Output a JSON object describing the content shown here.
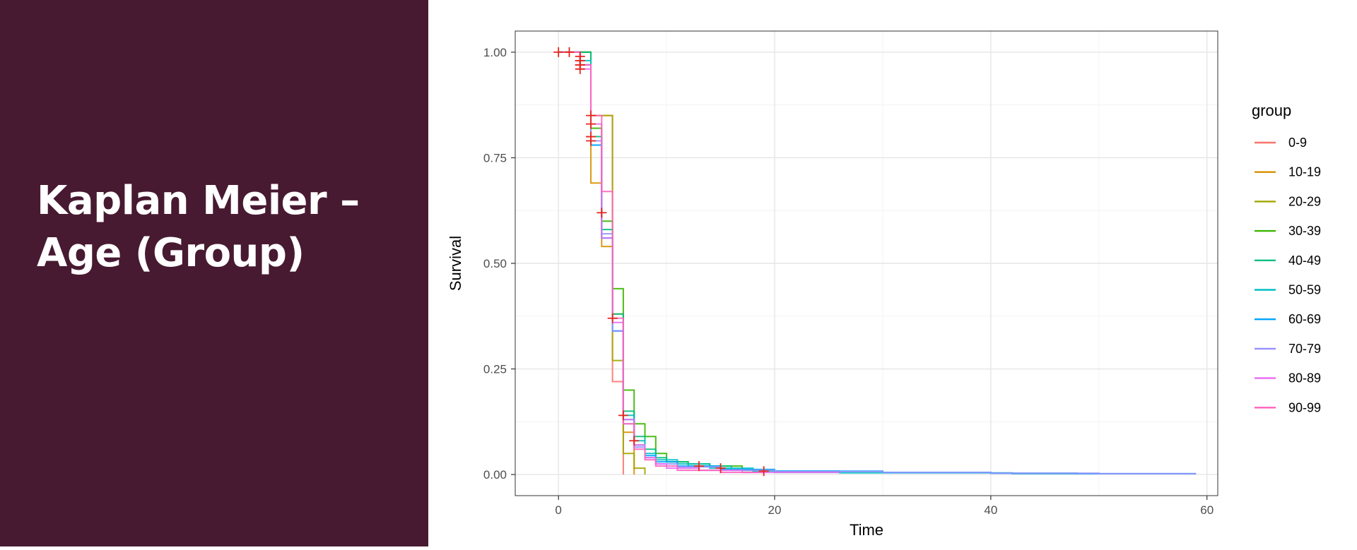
{
  "slide": {
    "title_line1": "Kaplan Meier –",
    "title_line2": "Age (Group)",
    "colors": {
      "panel": "#471a31",
      "title": "#ffffff"
    }
  },
  "chart_data": {
    "type": "line",
    "subtype": "kaplan-meier-step",
    "title": "",
    "xlabel": "Time",
    "ylabel": "Survival",
    "xlim": [
      -4,
      61
    ],
    "ylim": [
      -0.05,
      1.05
    ],
    "xticks": [
      0,
      20,
      40,
      60
    ],
    "xtick_labels": [
      "0",
      "20",
      "40",
      "60"
    ],
    "yticks": [
      0,
      0.25,
      0.5,
      0.75,
      1.0
    ],
    "ytick_labels": [
      "0.00",
      "0.25",
      "0.50",
      "0.75",
      "1.00"
    ],
    "grid": true,
    "legend": {
      "title": "group",
      "position": "right"
    },
    "censor_color": "#e8261c",
    "series": [
      {
        "name": "0-9",
        "color": "#f8766d",
        "points": [
          [
            0,
            1.0
          ],
          [
            3,
            1.0
          ],
          [
            3,
            0.85
          ],
          [
            5,
            0.85
          ],
          [
            5,
            0.22
          ],
          [
            6,
            0.22
          ],
          [
            6,
            0.0
          ]
        ],
        "censor": [
          [
            0,
            1.0
          ],
          [
            1,
            1.0
          ]
        ]
      },
      {
        "name": "10-19",
        "color": "#d89000",
        "points": [
          [
            0,
            1.0
          ],
          [
            3,
            1.0
          ],
          [
            3,
            0.69
          ],
          [
            4,
            0.69
          ],
          [
            4,
            0.54
          ],
          [
            5,
            0.54
          ],
          [
            5,
            0.38
          ],
          [
            6,
            0.38
          ],
          [
            6,
            0.1
          ],
          [
            7,
            0.1
          ],
          [
            7,
            0.0
          ]
        ],
        "censor": [
          [
            2,
            0.97
          ]
        ]
      },
      {
        "name": "20-29",
        "color": "#a3a500",
        "points": [
          [
            0,
            1.0
          ],
          [
            3,
            1.0
          ],
          [
            3,
            0.85
          ],
          [
            5,
            0.85
          ],
          [
            5,
            0.27
          ],
          [
            6,
            0.27
          ],
          [
            6,
            0.05
          ],
          [
            7,
            0.05
          ],
          [
            7,
            0.015
          ],
          [
            8,
            0.015
          ],
          [
            8,
            0.0
          ]
        ],
        "censor": [
          [
            2,
            0.98
          ]
        ]
      },
      {
        "name": "30-39",
        "color": "#39b600",
        "points": [
          [
            0,
            1.0
          ],
          [
            3,
            1.0
          ],
          [
            3,
            0.82
          ],
          [
            4,
            0.82
          ],
          [
            4,
            0.6
          ],
          [
            5,
            0.6
          ],
          [
            5,
            0.44
          ],
          [
            6,
            0.44
          ],
          [
            6,
            0.2
          ],
          [
            7,
            0.2
          ],
          [
            7,
            0.12
          ],
          [
            8,
            0.12
          ],
          [
            8,
            0.09
          ],
          [
            9,
            0.09
          ],
          [
            9,
            0.05
          ],
          [
            10,
            0.05
          ],
          [
            10,
            0.03
          ],
          [
            12,
            0.03
          ],
          [
            12,
            0.025
          ],
          [
            14,
            0.025
          ],
          [
            14,
            0.02
          ],
          [
            17,
            0.02
          ],
          [
            17,
            0.01
          ],
          [
            19,
            0.01
          ]
        ],
        "censor": [
          [
            3,
            0.8
          ]
        ]
      },
      {
        "name": "40-49",
        "color": "#00bf7d",
        "points": [
          [
            0,
            1.0
          ],
          [
            3,
            1.0
          ],
          [
            3,
            0.8
          ],
          [
            4,
            0.8
          ],
          [
            4,
            0.58
          ],
          [
            5,
            0.58
          ],
          [
            5,
            0.38
          ],
          [
            6,
            0.38
          ],
          [
            6,
            0.15
          ],
          [
            7,
            0.15
          ],
          [
            7,
            0.09
          ],
          [
            8,
            0.09
          ],
          [
            8,
            0.06
          ],
          [
            9,
            0.06
          ],
          [
            9,
            0.04
          ],
          [
            10,
            0.04
          ],
          [
            10,
            0.03
          ],
          [
            12,
            0.03
          ],
          [
            12,
            0.02
          ],
          [
            16,
            0.02
          ],
          [
            16,
            0.01
          ],
          [
            20,
            0.01
          ],
          [
            20,
            0.005
          ],
          [
            26,
            0.005
          ]
        ],
        "censor": [
          [
            3,
            0.79
          ]
        ]
      },
      {
        "name": "50-59",
        "color": "#00bfc4",
        "points": [
          [
            0,
            1.0
          ],
          [
            2,
            1.0
          ],
          [
            2,
            0.98
          ],
          [
            3,
            0.98
          ],
          [
            3,
            0.78
          ],
          [
            4,
            0.78
          ],
          [
            4,
            0.56
          ],
          [
            5,
            0.56
          ],
          [
            5,
            0.34
          ],
          [
            6,
            0.34
          ],
          [
            6,
            0.14
          ],
          [
            7,
            0.14
          ],
          [
            7,
            0.08
          ],
          [
            8,
            0.08
          ],
          [
            8,
            0.05
          ],
          [
            9,
            0.05
          ],
          [
            9,
            0.035
          ],
          [
            11,
            0.035
          ],
          [
            11,
            0.025
          ],
          [
            14,
            0.025
          ],
          [
            14,
            0.015
          ],
          [
            18,
            0.015
          ],
          [
            18,
            0.008
          ],
          [
            26,
            0.008
          ],
          [
            26,
            0.004
          ],
          [
            42,
            0.004
          ],
          [
            42,
            0.002
          ],
          [
            48,
            0.002
          ]
        ],
        "censor": [
          [
            2,
            0.98
          ]
        ]
      },
      {
        "name": "60-69",
        "color": "#00a5ff",
        "points": [
          [
            0,
            1.0
          ],
          [
            2,
            1.0
          ],
          [
            2,
            0.97
          ],
          [
            3,
            0.97
          ],
          [
            3,
            0.78
          ],
          [
            4,
            0.78
          ],
          [
            4,
            0.56
          ],
          [
            5,
            0.56
          ],
          [
            5,
            0.34
          ],
          [
            6,
            0.34
          ],
          [
            6,
            0.13
          ],
          [
            7,
            0.13
          ],
          [
            7,
            0.07
          ],
          [
            8,
            0.07
          ],
          [
            8,
            0.045
          ],
          [
            9,
            0.045
          ],
          [
            9,
            0.03
          ],
          [
            11,
            0.03
          ],
          [
            11,
            0.02
          ],
          [
            15,
            0.02
          ],
          [
            15,
            0.012
          ],
          [
            20,
            0.012
          ],
          [
            20,
            0.008
          ],
          [
            30,
            0.008
          ],
          [
            30,
            0.005
          ],
          [
            40,
            0.005
          ],
          [
            40,
            0.003
          ],
          [
            48,
            0.003
          ],
          [
            48,
            0.002
          ],
          [
            59,
            0.002
          ]
        ],
        "censor": [
          [
            2,
            0.97
          ]
        ]
      },
      {
        "name": "70-79",
        "color": "#9590ff",
        "points": [
          [
            0,
            1.0
          ],
          [
            2,
            1.0
          ],
          [
            2,
            0.97
          ],
          [
            3,
            0.97
          ],
          [
            3,
            0.79
          ],
          [
            4,
            0.79
          ],
          [
            4,
            0.57
          ],
          [
            5,
            0.57
          ],
          [
            5,
            0.34
          ],
          [
            6,
            0.34
          ],
          [
            6,
            0.12
          ],
          [
            7,
            0.12
          ],
          [
            7,
            0.065
          ],
          [
            8,
            0.065
          ],
          [
            8,
            0.04
          ],
          [
            9,
            0.04
          ],
          [
            9,
            0.025
          ],
          [
            11,
            0.025
          ],
          [
            11,
            0.018
          ],
          [
            15,
            0.018
          ],
          [
            15,
            0.01
          ],
          [
            20,
            0.01
          ],
          [
            20,
            0.007
          ],
          [
            30,
            0.007
          ],
          [
            30,
            0.005
          ],
          [
            40,
            0.005
          ],
          [
            40,
            0.003
          ],
          [
            50,
            0.003
          ],
          [
            50,
            0.002
          ],
          [
            59,
            0.002
          ]
        ],
        "censor": [
          [
            2,
            0.97
          ]
        ]
      },
      {
        "name": "80-89",
        "color": "#e76bf3",
        "points": [
          [
            0,
            1.0
          ],
          [
            2,
            1.0
          ],
          [
            2,
            0.96
          ],
          [
            3,
            0.96
          ],
          [
            3,
            0.83
          ],
          [
            4,
            0.83
          ],
          [
            4,
            0.56
          ],
          [
            5,
            0.56
          ],
          [
            5,
            0.36
          ],
          [
            6,
            0.36
          ],
          [
            6,
            0.13
          ],
          [
            7,
            0.13
          ],
          [
            7,
            0.07
          ],
          [
            8,
            0.07
          ],
          [
            8,
            0.04
          ],
          [
            9,
            0.04
          ],
          [
            9,
            0.025
          ],
          [
            10,
            0.025
          ],
          [
            10,
            0.015
          ],
          [
            13,
            0.015
          ],
          [
            13,
            0.01
          ],
          [
            17,
            0.01
          ],
          [
            17,
            0.005
          ],
          [
            26,
            0.005
          ]
        ],
        "censor": [
          [
            2,
            0.96
          ]
        ]
      },
      {
        "name": "90-99",
        "color": "#ff62bc",
        "points": [
          [
            0,
            1.0
          ],
          [
            2,
            1.0
          ],
          [
            2,
            0.97
          ],
          [
            3,
            0.97
          ],
          [
            3,
            0.85
          ],
          [
            4,
            0.85
          ],
          [
            4,
            0.67
          ],
          [
            5,
            0.67
          ],
          [
            5,
            0.37
          ],
          [
            6,
            0.37
          ],
          [
            6,
            0.12
          ],
          [
            7,
            0.12
          ],
          [
            7,
            0.06
          ],
          [
            8,
            0.06
          ],
          [
            8,
            0.035
          ],
          [
            9,
            0.035
          ],
          [
            9,
            0.02
          ],
          [
            11,
            0.02
          ],
          [
            11,
            0.01
          ],
          [
            15,
            0.01
          ],
          [
            15,
            0.005
          ],
          [
            19,
            0.005
          ]
        ],
        "censor": [
          [
            2,
            0.99
          ],
          [
            3,
            0.85
          ],
          [
            3,
            0.83
          ],
          [
            4,
            0.62
          ],
          [
            5,
            0.37
          ],
          [
            6,
            0.14
          ],
          [
            7,
            0.08
          ],
          [
            13,
            0.02
          ],
          [
            15,
            0.015
          ],
          [
            19,
            0.008
          ]
        ]
      }
    ]
  }
}
